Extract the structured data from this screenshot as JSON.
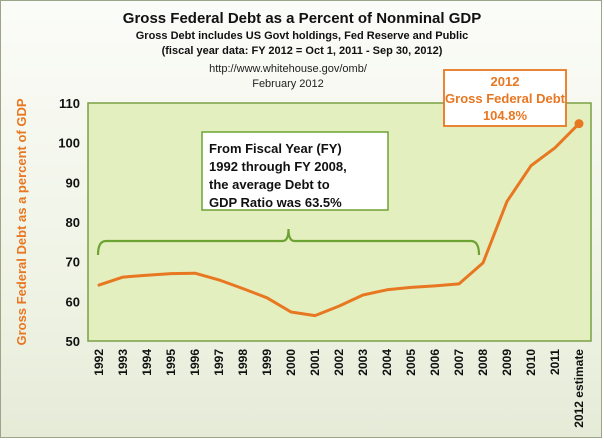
{
  "colors": {
    "line": "#e87722",
    "plot_bg": "#e4efbf",
    "plot_border": "#7aa045",
    "bracket": "#6da332",
    "callout_border": "#e87722"
  },
  "header": {
    "title": "Gross Federal Debt as a Percent of Nonminal GDP",
    "sub1": "Gross Debt includes US Govt holdings, Fed Reserve and Public",
    "sub2": "(fiscal year data: FY 2012 = Oct 1, 2011 - Sep 30, 2012)",
    "source": "http://www.whitehouse.gov/omb/",
    "date": "February 2012"
  },
  "annotation": {
    "lines": [
      "From Fiscal Year (FY)",
      "1992 through FY 2008,",
      "the average Debt to",
      "GDP Ratio was 63.5%"
    ]
  },
  "callout": {
    "lines": [
      "2012",
      "Gross Federal Debt",
      "104.8%"
    ]
  },
  "chart_data": {
    "type": "line",
    "title": "Gross Federal Debt as a Percent of Nonminal GDP",
    "ylabel": "Gross Federal Debt as a percent of GDP",
    "xlabel": "",
    "ylim": [
      50,
      110
    ],
    "yticks": [
      50,
      60,
      70,
      80,
      90,
      100,
      110
    ],
    "grid": false,
    "legend": "none",
    "categories": [
      "1992",
      "1993",
      "1994",
      "1995",
      "1996",
      "1997",
      "1998",
      "1999",
      "2000",
      "2001",
      "2002",
      "2003",
      "2004",
      "2005",
      "2006",
      "2007",
      "2008",
      "2009",
      "2010",
      "2011",
      "2012 estimate"
    ],
    "series": [
      {
        "values": [
          64.1,
          66.1,
          66.6,
          67.0,
          67.1,
          65.4,
          63.2,
          60.9,
          57.3,
          56.4,
          58.8,
          61.6,
          62.9,
          63.5,
          63.9,
          64.4,
          69.7,
          85.2,
          94.2,
          98.7,
          104.8
        ]
      }
    ]
  }
}
